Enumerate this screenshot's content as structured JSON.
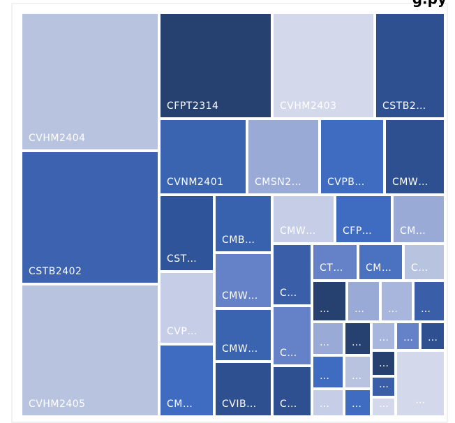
{
  "header": {
    "title": "g.py"
  },
  "tiles": [
    "CVHM2404",
    "CSTB2402",
    "CVHM2405",
    "CFPT2314",
    "CVHM2403",
    "CSTB2…",
    "CVNM2401",
    "CMSN2…",
    "CVPB…",
    "CMW…",
    "CST…",
    "CMB…",
    "CMW…",
    "CFP…",
    "CM…",
    "CVP…",
    "CMW…",
    "CMW…",
    "CM…",
    "CVIB…",
    "C…",
    "C…",
    "C…",
    "CT…",
    "CM…",
    "C…",
    "…",
    "…",
    "…",
    "…",
    "…",
    "…",
    "…",
    "…",
    "…",
    "…",
    "…",
    "…",
    "…",
    "…",
    "…",
    "…",
    "…"
  ]
}
